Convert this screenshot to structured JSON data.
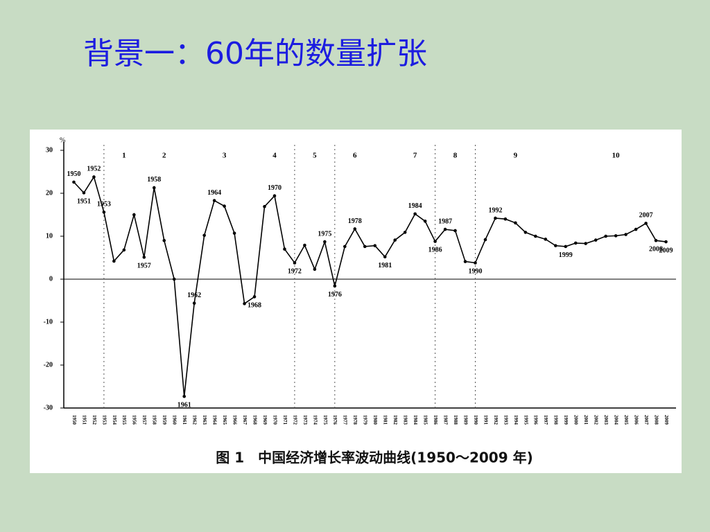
{
  "title": "背景一：60年的数量扩张",
  "chart_data": {
    "type": "line",
    "caption": "图 1　中国经济增长率波动曲线(1950～2009 年)",
    "y_unit": "%",
    "color": "#000000",
    "x": [
      1950,
      1951,
      1952,
      1953,
      1954,
      1955,
      1956,
      1957,
      1958,
      1959,
      1960,
      1961,
      1962,
      1963,
      1964,
      1965,
      1966,
      1967,
      1968,
      1969,
      1970,
      1971,
      1972,
      1973,
      1974,
      1975,
      1976,
      1977,
      1978,
      1979,
      1980,
      1981,
      1982,
      1983,
      1984,
      1985,
      1986,
      1987,
      1988,
      1989,
      1990,
      1991,
      1992,
      1993,
      1994,
      1995,
      1996,
      1997,
      1998,
      1999,
      2000,
      2001,
      2002,
      2003,
      2004,
      2005,
      2006,
      2007,
      2008,
      2009
    ],
    "values": [
      22.6,
      20.1,
      23.8,
      15.6,
      4.2,
      6.8,
      15.0,
      5.1,
      21.3,
      9.0,
      0,
      -27.3,
      -5.6,
      10.2,
      18.3,
      17.0,
      10.7,
      -5.7,
      -4.1,
      16.9,
      19.4,
      7.0,
      3.8,
      7.9,
      2.3,
      8.7,
      -1.6,
      7.6,
      11.7,
      7.6,
      7.8,
      5.2,
      9.1,
      10.9,
      15.2,
      13.5,
      8.8,
      11.6,
      11.3,
      4.1,
      3.8,
      9.2,
      14.2,
      14.0,
      13.1,
      10.9,
      10.0,
      9.3,
      7.8,
      7.6,
      8.4,
      8.3,
      9.1,
      10.0,
      10.1,
      10.4,
      11.6,
      13.0,
      9.0,
      8.7
    ],
    "xlim": [
      1949,
      2010
    ],
    "ylim": [
      -30,
      30
    ],
    "yticks": [
      30,
      20,
      10,
      0,
      -10,
      -20,
      -30
    ],
    "annotations": [
      "1950",
      "1951",
      "1952",
      "1953",
      "1957",
      "1958",
      "1961",
      "1962",
      "1964",
      "1968",
      "1970",
      "1972",
      "1975",
      "1976",
      "1978",
      "1981",
      "1984",
      "1986",
      "1987",
      "1990",
      "1992",
      "1999",
      "2007",
      "2008",
      "2009"
    ],
    "periods": [
      {
        "label": "1",
        "x": 1955
      },
      {
        "label": "2",
        "x": 1959
      },
      {
        "label": "3",
        "x": 1965
      },
      {
        "label": "4",
        "x": 1970
      },
      {
        "label": "5",
        "x": 1974
      },
      {
        "label": "6",
        "x": 1978
      },
      {
        "label": "7",
        "x": 1984
      },
      {
        "label": "8",
        "x": 1988
      },
      {
        "label": "9",
        "x": 1994
      },
      {
        "label": "10",
        "x": 2004
      }
    ],
    "dividers": [
      1953,
      1972,
      1976,
      1986,
      1990
    ]
  }
}
